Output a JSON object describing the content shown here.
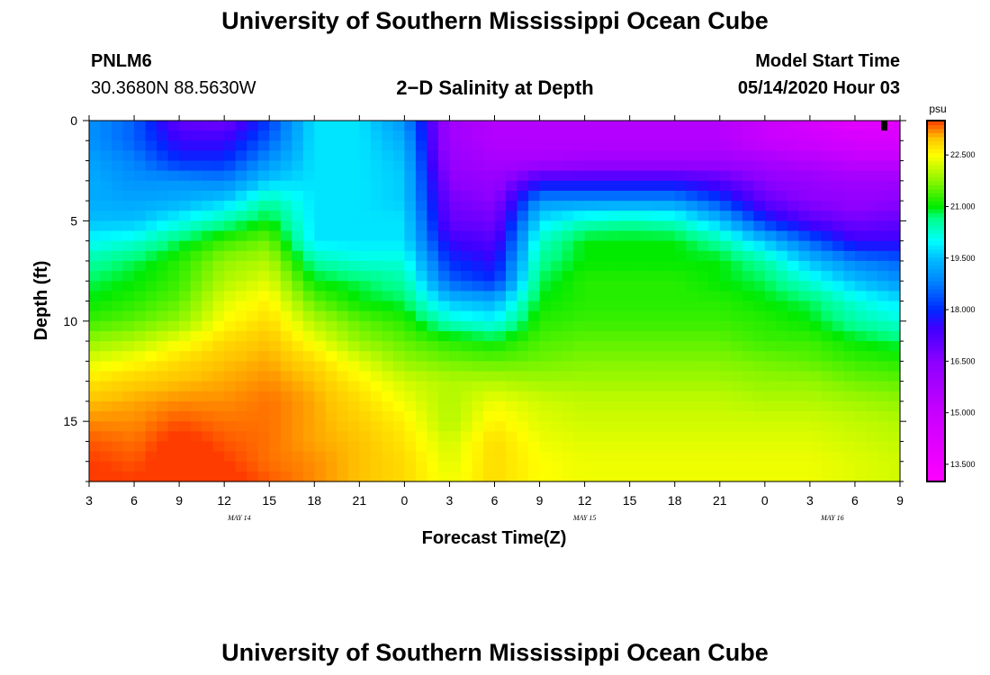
{
  "header": {
    "title": "University of Southern Mississippi Ocean Cube",
    "station": "PNLM6",
    "coords": "30.3680N 88.5630W",
    "subtitle": "2−D Salinity at Depth",
    "model_label": "Model Start Time",
    "model_time": "05/14/2020 Hour 03"
  },
  "footer": {
    "title": "University of Southern Mississippi Ocean Cube"
  },
  "chart_data": {
    "type": "heatmap",
    "title": "2−D Salinity at Depth",
    "xlabel": "Forecast Time(Z)",
    "ylabel": "Depth (ft)",
    "x_ticks": [
      "3",
      "6",
      "9",
      "12",
      "15",
      "18",
      "21",
      "0",
      "3",
      "6",
      "9",
      "12",
      "15",
      "18",
      "21",
      "0",
      "3",
      "6",
      "9"
    ],
    "x_range_hours": [
      0,
      54
    ],
    "date_labels": [
      {
        "text": "MAY 14",
        "hour": 10
      },
      {
        "text": "MAY 15",
        "hour": 33
      },
      {
        "text": "MAY 16",
        "hour": 49.5
      }
    ],
    "y_ticks": [
      "0",
      "5",
      "10",
      "15"
    ],
    "y_tick_values": [
      0,
      5,
      10,
      15
    ],
    "ylim": [
      0,
      18
    ],
    "colorbar": {
      "unit": "psu",
      "range": [
        13.0,
        23.5
      ],
      "tick_labels": [
        "22.500",
        "21.000",
        "19.500",
        "18.000",
        "16.500",
        "15.000",
        "13.500"
      ],
      "tick_values": [
        22.5,
        21.0,
        19.5,
        18.0,
        16.5,
        15.0,
        13.5
      ]
    },
    "depth_levels_ft": [
      0,
      1,
      2,
      3,
      4,
      5,
      6,
      7,
      8,
      9,
      10,
      11,
      12,
      13,
      14,
      15,
      16,
      17,
      18
    ],
    "anchor_hours": [
      0,
      3,
      6,
      9,
      12,
      15,
      18,
      21,
      24,
      27,
      30,
      33,
      36,
      39,
      42,
      45,
      48,
      51,
      54
    ],
    "salinity_psu": [
      [
        19.0,
        18.5,
        17.0,
        16.8,
        18.2,
        19.8,
        19.8,
        19.0,
        16.0,
        15.5,
        15.5,
        15.5,
        15.5,
        15.5,
        15.5,
        15.0,
        14.5,
        14.0,
        14.0
      ],
      [
        19.0,
        18.5,
        17.5,
        17.5,
        18.5,
        19.8,
        19.8,
        19.3,
        16.0,
        15.5,
        15.5,
        15.5,
        15.5,
        15.5,
        15.5,
        15.0,
        14.8,
        14.5,
        14.5
      ],
      [
        19.2,
        18.8,
        18.0,
        18.0,
        19.0,
        19.8,
        19.8,
        19.5,
        16.2,
        15.8,
        15.8,
        16.0,
        16.0,
        16.0,
        16.0,
        15.8,
        15.5,
        15.2,
        15.2
      ],
      [
        19.3,
        19.0,
        19.0,
        18.8,
        19.6,
        19.8,
        19.8,
        19.6,
        16.5,
        16.2,
        17.5,
        17.5,
        17.5,
        17.5,
        17.2,
        16.5,
        16.2,
        16.0,
        16.0
      ],
      [
        19.3,
        19.2,
        19.3,
        19.6,
        20.5,
        19.8,
        19.8,
        19.6,
        16.8,
        16.5,
        19.0,
        19.0,
        19.0,
        19.0,
        18.2,
        17.0,
        16.5,
        16.3,
        16.5
      ],
      [
        19.5,
        19.5,
        20.0,
        20.5,
        21.0,
        19.8,
        19.8,
        19.8,
        17.0,
        16.8,
        19.8,
        20.3,
        20.5,
        20.3,
        19.5,
        18.0,
        17.2,
        16.8,
        17.0
      ],
      [
        20.0,
        20.2,
        20.8,
        21.3,
        21.6,
        19.8,
        19.8,
        19.8,
        17.5,
        17.2,
        20.3,
        21.0,
        21.0,
        21.0,
        20.5,
        19.5,
        18.5,
        17.5,
        17.5
      ],
      [
        20.5,
        20.8,
        21.2,
        21.8,
        22.0,
        20.5,
        20.2,
        20.2,
        18.0,
        17.6,
        20.6,
        21.0,
        21.0,
        21.0,
        21.0,
        20.5,
        19.5,
        18.8,
        18.5
      ],
      [
        20.8,
        21.0,
        21.3,
        22.0,
        22.3,
        21.0,
        20.8,
        20.5,
        18.5,
        18.0,
        20.8,
        21.2,
        21.2,
        21.2,
        21.0,
        20.8,
        20.2,
        19.5,
        19.0
      ],
      [
        21.0,
        21.2,
        21.5,
        22.3,
        22.6,
        21.5,
        21.0,
        20.8,
        19.5,
        19.3,
        21.0,
        21.2,
        21.2,
        21.2,
        21.2,
        21.0,
        20.8,
        20.2,
        19.8
      ],
      [
        21.3,
        21.5,
        21.8,
        22.5,
        22.8,
        22.0,
        21.5,
        21.2,
        20.3,
        20.0,
        21.2,
        21.3,
        21.3,
        21.3,
        21.3,
        21.2,
        21.0,
        20.5,
        20.2
      ],
      [
        21.8,
        22.0,
        22.4,
        22.8,
        23.0,
        22.4,
        21.8,
        21.5,
        21.2,
        21.0,
        21.4,
        21.5,
        21.5,
        21.5,
        21.5,
        21.3,
        21.3,
        21.0,
        20.8
      ],
      [
        22.3,
        22.5,
        22.8,
        23.0,
        23.1,
        22.8,
        22.3,
        21.8,
        21.6,
        21.5,
        21.6,
        21.7,
        21.7,
        21.7,
        21.7,
        21.6,
        21.5,
        21.3,
        21.2
      ],
      [
        22.7,
        22.9,
        23.0,
        23.1,
        23.2,
        23.0,
        22.6,
        22.2,
        22.0,
        22.0,
        21.9,
        21.9,
        21.9,
        21.9,
        21.9,
        21.8,
        21.8,
        21.6,
        21.5
      ],
      [
        23.0,
        23.1,
        23.2,
        23.2,
        23.3,
        23.1,
        22.8,
        22.4,
        22.0,
        22.4,
        22.2,
        22.1,
        22.1,
        22.1,
        22.1,
        22.0,
        22.0,
        21.9,
        21.8
      ],
      [
        23.2,
        23.2,
        23.4,
        23.3,
        23.3,
        23.1,
        22.9,
        22.6,
        22.0,
        22.6,
        22.3,
        22.2,
        22.2,
        22.2,
        22.2,
        22.2,
        22.2,
        22.1,
        22.0
      ],
      [
        23.4,
        23.3,
        23.6,
        23.4,
        23.3,
        23.1,
        23.0,
        22.7,
        22.2,
        22.8,
        22.4,
        22.3,
        22.3,
        22.3,
        22.3,
        22.3,
        22.3,
        22.2,
        22.1
      ],
      [
        23.5,
        23.4,
        23.7,
        23.5,
        23.3,
        23.2,
        23.0,
        22.8,
        22.3,
        22.8,
        22.5,
        22.4,
        22.4,
        22.4,
        22.4,
        22.4,
        22.4,
        22.3,
        22.2
      ],
      [
        23.6,
        23.5,
        23.8,
        23.6,
        23.4,
        23.2,
        23.0,
        22.8,
        22.4,
        22.8,
        22.5,
        22.4,
        22.4,
        22.4,
        22.4,
        22.4,
        22.4,
        22.3,
        22.2
      ]
    ]
  }
}
